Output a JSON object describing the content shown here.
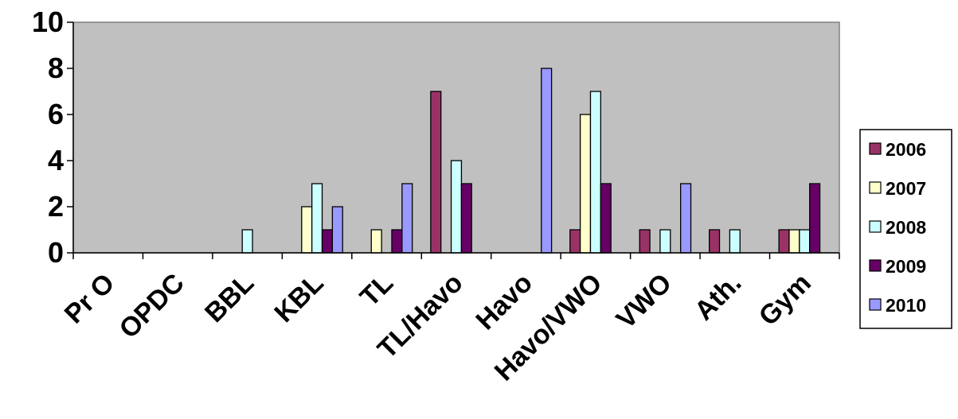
{
  "chart_data": {
    "type": "bar",
    "categories": [
      "Pr O",
      "OPDC",
      "BBL",
      "KBL",
      "TL",
      "TL/Havo",
      "Havo",
      "Havo/VWO",
      "VWO",
      "Ath.",
      "Gym"
    ],
    "series": [
      {
        "name": "2006",
        "color": "#993366",
        "values": [
          0,
          0,
          0,
          0,
          0,
          7,
          0,
          1,
          1,
          1,
          1
        ]
      },
      {
        "name": "2007",
        "color": "#FFFFCC",
        "values": [
          0,
          0,
          0,
          2,
          1,
          0,
          0,
          6,
          0,
          0,
          1
        ]
      },
      {
        "name": "2008",
        "color": "#CCFFFF",
        "values": [
          0,
          0,
          1,
          3,
          0,
          4,
          0,
          7,
          1,
          1,
          1
        ]
      },
      {
        "name": "2009",
        "color": "#660066",
        "values": [
          0,
          0,
          0,
          1,
          1,
          3,
          0,
          3,
          0,
          0,
          3
        ]
      },
      {
        "name": "2010",
        "color": "#9999FF",
        "values": [
          0,
          0,
          0,
          2,
          3,
          0,
          8,
          0,
          3,
          0,
          0
        ]
      }
    ],
    "yticks": [
      "0",
      "2",
      "4",
      "6",
      "8",
      "10"
    ],
    "ylim": [
      0,
      10
    ],
    "grid": false,
    "plot_background": "#C0C0C0",
    "legend_position": "right"
  }
}
